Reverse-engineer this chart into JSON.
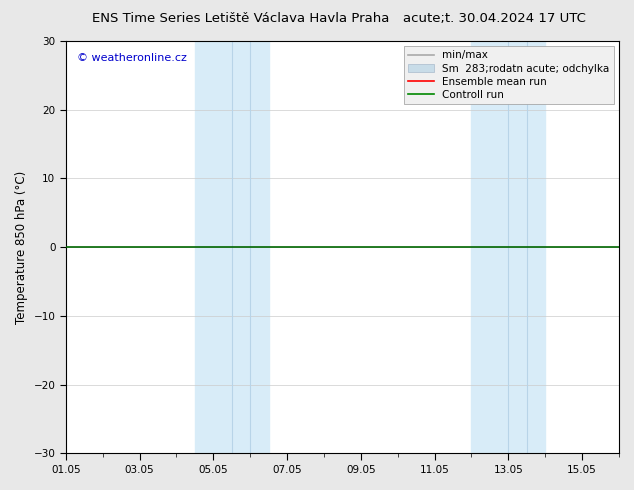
{
  "title_left": "ENS Time Series Letiště Václava Havla Praha",
  "title_right": "acute;t. 30.04.2024 17 UTC",
  "ylabel": "Temperature 850 hPa (°C)",
  "watermark": "© weatheronline.cz",
  "ylim": [
    -30,
    30
  ],
  "yticks": [
    -30,
    -20,
    -10,
    0,
    10,
    20,
    30
  ],
  "xlim": [
    0,
    15
  ],
  "xtick_labels": [
    "01.05",
    "03.05",
    "05.05",
    "07.05",
    "09.05",
    "11.05",
    "13.05",
    "15.05"
  ],
  "xtick_positions": [
    0,
    2,
    4,
    6,
    8,
    10,
    12,
    14
  ],
  "shaded_bands": [
    {
      "xstart": 3.0,
      "xend": 3.5,
      "color": "#ddeeff"
    },
    {
      "xstart": 3.5,
      "xend": 5.0,
      "color": "#d0e8f8"
    },
    {
      "xstart": 5.0,
      "xend": 5.5,
      "color": "#ddeeff"
    },
    {
      "xstart": 11.0,
      "xend": 11.5,
      "color": "#ddeeff"
    },
    {
      "xstart": 11.5,
      "xend": 12.5,
      "color": "#d0e8f8"
    },
    {
      "xstart": 12.5,
      "xend": 13.0,
      "color": "#ddeeff"
    }
  ],
  "legend_entries": [
    {
      "label": "min/max",
      "color": "#aaaaaa",
      "lw": 1.2
    },
    {
      "label": "Sm  283;rodatn acute; odchylka",
      "color": "#c8dce8",
      "lw": 8
    },
    {
      "label": "Ensemble mean run",
      "color": "#ff0000",
      "lw": 1.2
    },
    {
      "label": "Controll run",
      "color": "#008800",
      "lw": 1.2
    }
  ],
  "bg_color": "#e8e8e8",
  "plot_bg_color": "#ffffff",
  "grid_color": "#cccccc",
  "zero_line_color": "#006600",
  "title_fontsize": 9.5,
  "tick_fontsize": 7.5,
  "watermark_color": "#0000cc",
  "axis_label_fontsize": 8.5,
  "legend_fontsize": 7.5
}
